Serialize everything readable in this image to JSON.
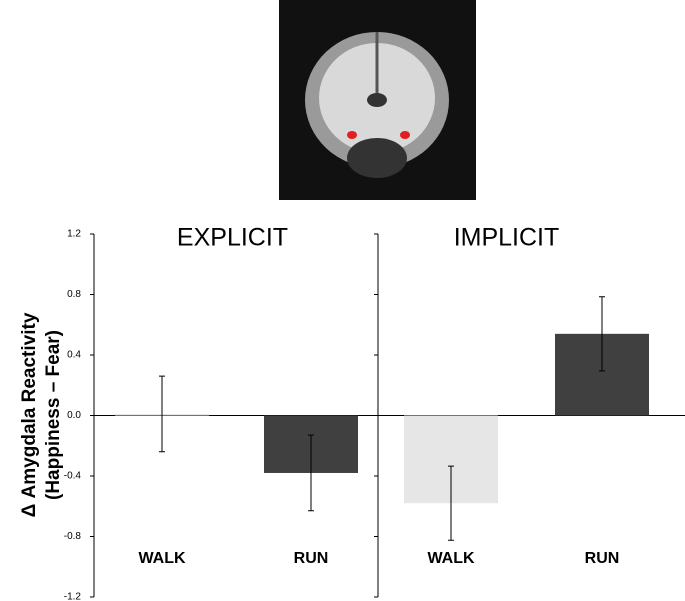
{
  "chart_data": [
    {
      "type": "bar",
      "title": "EXPLICIT",
      "y_label": [
        "Δ Amygdala Reactivity",
        "(Happiness – Fear)"
      ],
      "categories": [
        "WALK",
        "RUN"
      ],
      "values": [
        0.01,
        -0.38
      ],
      "errors": [
        0.25,
        0.25
      ],
      "colors": [
        "#e6e6e6",
        "#404040"
      ],
      "ylim": [
        -1.2,
        1.2
      ],
      "yticks": [
        -1.2,
        -0.8,
        -0.4,
        {
          "value": 0,
          "label": "0.0"
        },
        0.4,
        0.8,
        1.2
      ]
    },
    {
      "type": "bar",
      "title": "IMPLICIT",
      "categories": [
        "WALK",
        "RUN"
      ],
      "values": [
        -0.58,
        0.54
      ],
      "errors": [
        0.245,
        0.245
      ],
      "colors": [
        "#e6e6e6",
        "#404040"
      ],
      "ylim": [
        -1.2,
        1.2
      ]
    }
  ]
}
